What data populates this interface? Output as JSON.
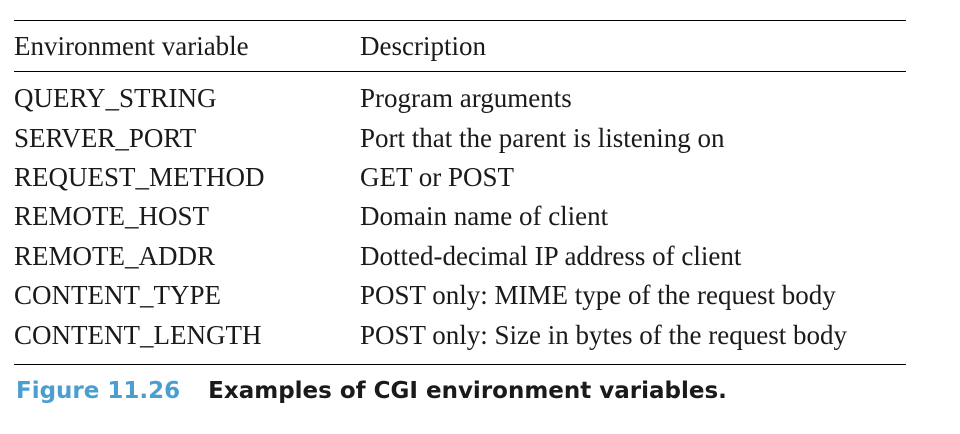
{
  "table": {
    "headers": {
      "variable": "Environment variable",
      "description": "Description"
    },
    "rows": [
      {
        "variable": "QUERY_STRING",
        "description": "Program arguments"
      },
      {
        "variable": "SERVER_PORT",
        "description": "Port that the parent is listening on"
      },
      {
        "variable": "REQUEST_METHOD",
        "description": "GET or POST"
      },
      {
        "variable": "REMOTE_HOST",
        "description": "Domain name of client"
      },
      {
        "variable": "REMOTE_ADDR",
        "description": "Dotted-decimal IP address of client"
      },
      {
        "variable": "CONTENT_TYPE",
        "description": "POST only: MIME type of the request body"
      },
      {
        "variable": "CONTENT_LENGTH",
        "description": "POST only: Size in bytes of the request body"
      }
    ]
  },
  "caption": {
    "label": "Figure 11.26",
    "text": "Examples of CGI environment variables."
  },
  "colors": {
    "caption_label": "#4a9fd0",
    "text": "#1a1a1a",
    "rule": "#000000"
  }
}
